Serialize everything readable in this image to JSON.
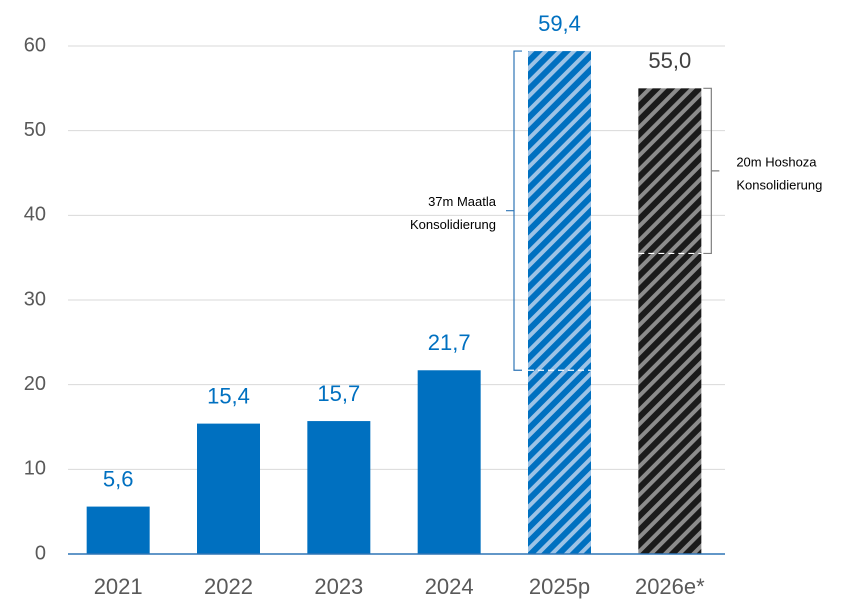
{
  "chart_data": {
    "type": "bar",
    "categories": [
      "2021",
      "2022",
      "2023",
      "2024",
      "2025p",
      "2026e*"
    ],
    "values": [
      5.6,
      15.4,
      15.7,
      21.7,
      59.4,
      55.0
    ],
    "value_labels": [
      "5,6",
      "15,4",
      "15,7",
      "21,7",
      "59,4",
      "55,0"
    ],
    "colors": [
      "#0070c0",
      "#0070c0",
      "#0070c0",
      "#0070c0",
      "#0070c0",
      "#404040"
    ],
    "hatched": [
      false,
      false,
      false,
      false,
      true,
      true
    ],
    "ylim": [
      0,
      60
    ],
    "yticks": [
      0,
      10,
      20,
      30,
      40,
      50,
      60
    ],
    "grid": true,
    "annotations": [
      {
        "lines": [
          "37m Maatla",
          "Konsolidierung"
        ],
        "range": [
          21.7,
          59.4
        ],
        "category": 4,
        "side": "left"
      },
      {
        "lines": [
          "20m Hoshoza",
          "Konsolidierung"
        ],
        "range": [
          35.5,
          55.0
        ],
        "category": 5,
        "side": "right"
      }
    ]
  }
}
